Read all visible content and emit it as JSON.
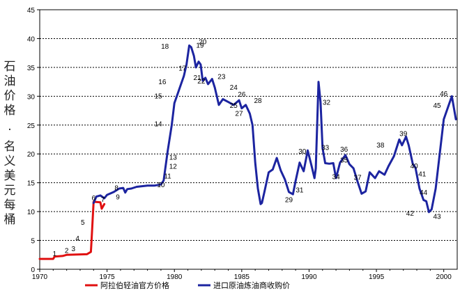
{
  "chart_data": {
    "type": "line",
    "xlim": [
      1970,
      2001
    ],
    "ylim": [
      0,
      45
    ],
    "x_ticks": [
      "1970",
      "1975",
      "1980",
      "1985",
      "1990",
      "1995",
      "2000"
    ],
    "y_ticks": [
      "0",
      "5",
      "10",
      "15",
      "20",
      "25",
      "30",
      "35",
      "40",
      "45"
    ],
    "ylabel_col1": "石油价格",
    "ylabel_col2": "名义美元每桶",
    "ylabel_dot": ".",
    "grid": "horizontal-dashed",
    "legend_placement": "bottom",
    "series": [
      {
        "name": "阿拉伯轻油官方价格",
        "color": "#e01010",
        "points": [
          [
            1970.0,
            1.8
          ],
          [
            1971.0,
            1.8
          ],
          [
            1971.1,
            2.2
          ],
          [
            1971.7,
            2.3
          ],
          [
            1972.0,
            2.5
          ],
          [
            1973.5,
            2.6
          ],
          [
            1973.8,
            3.0
          ],
          [
            1973.85,
            5.1
          ],
          [
            1974.0,
            11.7
          ],
          [
            1974.5,
            11.6
          ],
          [
            1974.6,
            10.5
          ],
          [
            1974.8,
            11.3
          ]
        ]
      },
      {
        "name": "进口原油炼油商收购价",
        "color": "#1c24a0",
        "points": [
          [
            1974.0,
            11.5
          ],
          [
            1974.2,
            12.6
          ],
          [
            1974.5,
            12.8
          ],
          [
            1974.8,
            12.3
          ],
          [
            1975.0,
            12.9
          ],
          [
            1975.5,
            13.4
          ],
          [
            1975.9,
            14.0
          ],
          [
            1976.2,
            14.1
          ],
          [
            1976.35,
            13.3
          ],
          [
            1976.5,
            13.9
          ],
          [
            1976.8,
            14.0
          ],
          [
            1977.2,
            14.3
          ],
          [
            1977.6,
            14.4
          ],
          [
            1978.0,
            14.5
          ],
          [
            1978.5,
            14.5
          ],
          [
            1979.0,
            14.7
          ],
          [
            1979.2,
            15.4
          ],
          [
            1979.5,
            20.5
          ],
          [
            1979.8,
            25.0
          ],
          [
            1980.0,
            28.8
          ],
          [
            1980.4,
            31.5
          ],
          [
            1980.7,
            33.5
          ],
          [
            1980.9,
            35.5
          ],
          [
            1981.1,
            38.8
          ],
          [
            1981.25,
            38.5
          ],
          [
            1981.45,
            37.0
          ],
          [
            1981.6,
            35.0
          ],
          [
            1981.8,
            36.0
          ],
          [
            1981.95,
            35.5
          ],
          [
            1982.1,
            32.7
          ],
          [
            1982.3,
            33.2
          ],
          [
            1982.5,
            32.1
          ],
          [
            1982.8,
            33.0
          ],
          [
            1983.0,
            31.5
          ],
          [
            1983.3,
            28.5
          ],
          [
            1983.6,
            29.5
          ],
          [
            1984.0,
            29.0
          ],
          [
            1984.4,
            28.5
          ],
          [
            1984.8,
            29.3
          ],
          [
            1985.0,
            27.9
          ],
          [
            1985.3,
            28.5
          ],
          [
            1985.6,
            27.0
          ],
          [
            1985.8,
            25.0
          ],
          [
            1986.0,
            18.5
          ],
          [
            1986.2,
            14.0
          ],
          [
            1986.4,
            11.3
          ],
          [
            1986.5,
            11.5
          ],
          [
            1986.7,
            13.6
          ],
          [
            1987.0,
            16.8
          ],
          [
            1987.3,
            17.3
          ],
          [
            1987.6,
            19.3
          ],
          [
            1987.9,
            17.1
          ],
          [
            1988.2,
            15.6
          ],
          [
            1988.5,
            13.4
          ],
          [
            1988.8,
            13.0
          ],
          [
            1989.0,
            15.3
          ],
          [
            1989.3,
            18.5
          ],
          [
            1989.6,
            17.0
          ],
          [
            1989.9,
            20.6
          ],
          [
            1990.2,
            17.8
          ],
          [
            1990.4,
            15.8
          ],
          [
            1990.5,
            17.5
          ],
          [
            1990.7,
            32.5
          ],
          [
            1990.85,
            29.0
          ],
          [
            1991.0,
            21.0
          ],
          [
            1991.2,
            18.4
          ],
          [
            1991.5,
            18.3
          ],
          [
            1991.8,
            18.4
          ],
          [
            1992.0,
            15.8
          ],
          [
            1992.3,
            18.5
          ],
          [
            1992.7,
            19.8
          ],
          [
            1993.0,
            18.2
          ],
          [
            1993.3,
            17.5
          ],
          [
            1993.6,
            15.2
          ],
          [
            1993.9,
            13.1
          ],
          [
            1994.2,
            13.5
          ],
          [
            1994.5,
            16.8
          ],
          [
            1994.9,
            15.8
          ],
          [
            1995.2,
            17.0
          ],
          [
            1995.6,
            16.4
          ],
          [
            1995.9,
            17.9
          ],
          [
            1996.3,
            19.6
          ],
          [
            1996.7,
            22.5
          ],
          [
            1996.9,
            21.5
          ],
          [
            1997.2,
            23.0
          ],
          [
            1997.4,
            21.5
          ],
          [
            1997.7,
            18.3
          ],
          [
            1997.9,
            17.6
          ],
          [
            1998.2,
            14.0
          ],
          [
            1998.5,
            12.0
          ],
          [
            1998.7,
            11.8
          ],
          [
            1998.9,
            9.9
          ],
          [
            1999.1,
            10.4
          ],
          [
            1999.4,
            14.0
          ],
          [
            1999.7,
            20.0
          ],
          [
            2000.0,
            26.0
          ],
          [
            2000.3,
            28.0
          ],
          [
            2000.6,
            30.0
          ],
          [
            2000.9,
            26.0
          ]
        ]
      }
    ],
    "annotations": [
      {
        "label": "1",
        "x": 1971.1,
        "y": 2.8
      },
      {
        "label": "2",
        "x": 1972.0,
        "y": 3.3
      },
      {
        "label": "3",
        "x": 1972.5,
        "y": 3.6
      },
      {
        "label": "4",
        "x": 1972.8,
        "y": 5.4
      },
      {
        "label": "5",
        "x": 1973.2,
        "y": 8.2
      },
      {
        "label": "6",
        "x": 1974.0,
        "y": 12.4
      },
      {
        "label": "7",
        "x": 1974.7,
        "y": 12.2
      },
      {
        "label": "8",
        "x": 1975.7,
        "y": 14.2
      },
      {
        "label": "9",
        "x": 1975.8,
        "y": 12.6
      },
      {
        "label": "10",
        "x": 1979.0,
        "y": 14.7
      },
      {
        "label": "11",
        "x": 1979.5,
        "y": 16.2
      },
      {
        "label": "12",
        "x": 1979.9,
        "y": 17.9
      },
      {
        "label": "13",
        "x": 1979.9,
        "y": 19.5
      },
      {
        "label": "14",
        "x": 1978.8,
        "y": 25.3
      },
      {
        "label": "15",
        "x": 1978.8,
        "y": 30.1
      },
      {
        "label": "16",
        "x": 1979.1,
        "y": 32.6
      },
      {
        "label": "17",
        "x": 1980.6,
        "y": 34.9
      },
      {
        "label": "18",
        "x": 1979.3,
        "y": 38.7
      },
      {
        "label": "19",
        "x": 1981.9,
        "y": 38.9
      },
      {
        "label": "20",
        "x": 1982.1,
        "y": 39.5
      },
      {
        "label": "21",
        "x": 1981.7,
        "y": 33.3
      },
      {
        "label": "22",
        "x": 1982.0,
        "y": 32.7
      },
      {
        "label": "23",
        "x": 1983.5,
        "y": 33.5
      },
      {
        "label": "24",
        "x": 1984.4,
        "y": 31.6
      },
      {
        "label": "25",
        "x": 1984.4,
        "y": 28.5
      },
      {
        "label": "26",
        "x": 1985.0,
        "y": 30.4
      },
      {
        "label": "27",
        "x": 1984.8,
        "y": 27.1
      },
      {
        "label": "28",
        "x": 1986.2,
        "y": 29.3
      },
      {
        "label": "29",
        "x": 1988.5,
        "y": 12.1
      },
      {
        "label": "30",
        "x": 1989.5,
        "y": 20.5
      },
      {
        "label": "31",
        "x": 1989.3,
        "y": 13.8
      },
      {
        "label": "32",
        "x": 1991.3,
        "y": 29.0
      },
      {
        "label": "33",
        "x": 1991.2,
        "y": 21.2
      },
      {
        "label": "34",
        "x": 1992.0,
        "y": 16.1
      },
      {
        "label": "35",
        "x": 1992.6,
        "y": 19.0
      },
      {
        "label": "36",
        "x": 1992.6,
        "y": 20.9
      },
      {
        "label": "37",
        "x": 1993.6,
        "y": 16.0
      },
      {
        "label": "38",
        "x": 1995.3,
        "y": 21.6
      },
      {
        "label": "39",
        "x": 1997.0,
        "y": 23.6
      },
      {
        "label": "40",
        "x": 1997.8,
        "y": 18.0
      },
      {
        "label": "41",
        "x": 1998.4,
        "y": 16.6
      },
      {
        "label": "42",
        "x": 1997.5,
        "y": 9.8
      },
      {
        "label": "43",
        "x": 1999.5,
        "y": 9.2
      },
      {
        "label": "44",
        "x": 1998.5,
        "y": 13.4
      },
      {
        "label": "45",
        "x": 1999.5,
        "y": 28.5
      },
      {
        "label": "46",
        "x": 2000.0,
        "y": 30.5
      }
    ]
  }
}
